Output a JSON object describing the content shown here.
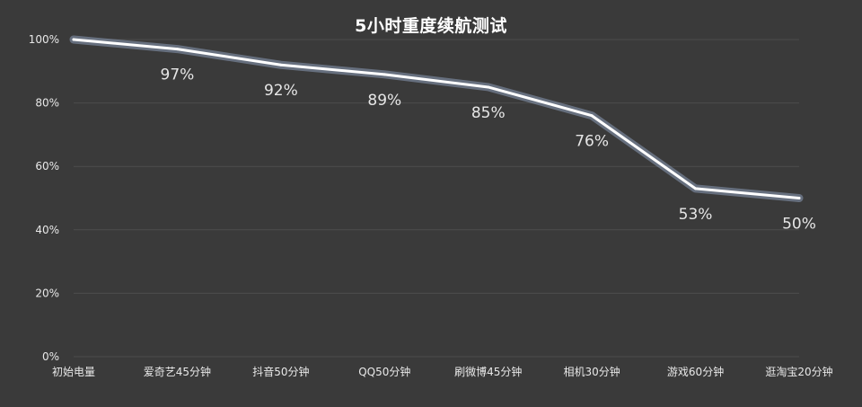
{
  "chart_data": {
    "type": "line",
    "title": "5小时重度续航测试",
    "xlabel": "",
    "ylabel": "",
    "categories": [
      "初始电量",
      "爱奇艺45分钟",
      "抖音50分钟",
      "QQ50分钟",
      "刷微博45分钟",
      "相机30分钟",
      "游戏60分钟",
      "逛淘宝20分钟"
    ],
    "series": [
      {
        "values": [
          100,
          97,
          92,
          89,
          85,
          76,
          53,
          50
        ],
        "data_labels": [
          "",
          "97%",
          "92%",
          "89%",
          "85%",
          "76%",
          "53%",
          "50%"
        ]
      }
    ],
    "yticks": [
      "0%",
      "20%",
      "40%",
      "60%",
      "80%",
      "100%"
    ],
    "ylim": [
      0,
      100
    ],
    "grid": true,
    "legend": "none",
    "colors": {
      "background": "#3a3a3a",
      "line": "#ffffff",
      "glow": "#b9d4ff",
      "grid": "#4c4c4c",
      "text": "#e8e8e8"
    }
  }
}
